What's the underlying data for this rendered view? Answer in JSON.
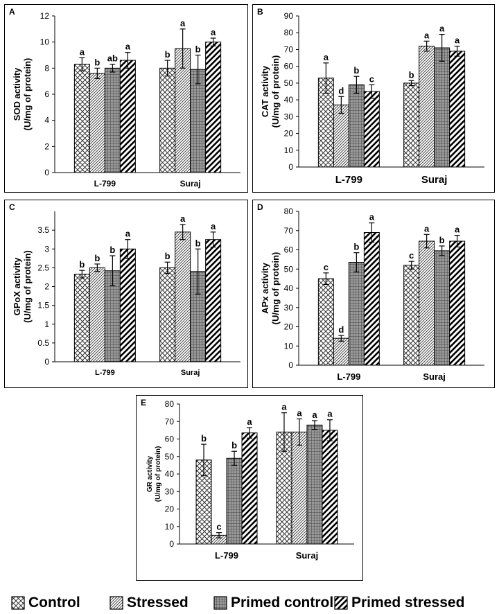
{
  "patterns": {
    "control": "crosshatch",
    "stressed": "diagonal-fine",
    "primed_control": "grid",
    "primed_stressed": "diagonal-bold"
  },
  "legend": [
    {
      "key": "control",
      "label": "Control"
    },
    {
      "key": "stressed",
      "label": "Stressed"
    },
    {
      "key": "primed_control",
      "label": "Primed control"
    },
    {
      "key": "primed_stressed",
      "label": "Primed stressed"
    }
  ],
  "chart_data": [
    {
      "panel_label": "A",
      "type": "bar",
      "ylabel": "SOD activity\n(U/mg of protein)",
      "ylim": [
        0,
        12
      ],
      "yticks": [
        0,
        2,
        4,
        6,
        8,
        10,
        12
      ],
      "categories": [
        "L-799",
        "Suraj"
      ],
      "series": [
        {
          "name": "Control",
          "values": [
            8.3,
            8.0
          ],
          "errors": [
            0.5,
            0.6
          ],
          "letters": [
            "a",
            "b"
          ]
        },
        {
          "name": "Stressed",
          "values": [
            7.6,
            9.5
          ],
          "errors": [
            0.4,
            1.5
          ],
          "letters": [
            "b",
            "a"
          ]
        },
        {
          "name": "Primed control",
          "values": [
            8.0,
            7.9
          ],
          "errors": [
            0.3,
            1.1
          ],
          "letters": [
            "ab",
            "b"
          ]
        },
        {
          "name": "Primed stressed",
          "values": [
            8.6,
            10.0
          ],
          "errors": [
            0.6,
            0.3
          ],
          "letters": [
            "a",
            "a"
          ]
        }
      ]
    },
    {
      "panel_label": "B",
      "type": "bar",
      "ylabel": "CAT activity\n(U/mg of protein)",
      "ylim": [
        0,
        90
      ],
      "yticks": [
        0,
        10,
        20,
        30,
        40,
        50,
        60,
        70,
        80,
        90
      ],
      "categories": [
        "L-799",
        "Suraj"
      ],
      "series": [
        {
          "name": "Control",
          "values": [
            53,
            50
          ],
          "errors": [
            9,
            1.5
          ],
          "letters": [
            "a",
            "b"
          ]
        },
        {
          "name": "Stressed",
          "values": [
            37,
            72
          ],
          "errors": [
            5,
            3
          ],
          "letters": [
            "d",
            "a"
          ]
        },
        {
          "name": "Primed control",
          "values": [
            49,
            71
          ],
          "errors": [
            5,
            8
          ],
          "letters": [
            "b",
            "a"
          ]
        },
        {
          "name": "Primed stressed",
          "values": [
            45,
            69
          ],
          "errors": [
            4,
            3
          ],
          "letters": [
            "c",
            "a"
          ]
        }
      ]
    },
    {
      "panel_label": "C",
      "type": "bar",
      "ylabel": "GPoX activity\n(U/mg of protein)",
      "ylim": [
        0,
        4
      ],
      "yticks": [
        "0",
        "0.5",
        "1",
        "1.5",
        "2",
        "2.5",
        "3",
        "3.5"
      ],
      "categories": [
        "L-799",
        "Suraj"
      ],
      "series": [
        {
          "name": "Control",
          "values": [
            2.33,
            2.5
          ],
          "errors": [
            0.1,
            0.15
          ],
          "letters": [
            "b",
            "b"
          ]
        },
        {
          "name": "Stressed",
          "values": [
            2.5,
            3.45
          ],
          "errors": [
            0.1,
            0.2
          ],
          "letters": [
            "b",
            "a"
          ]
        },
        {
          "name": "Primed control",
          "values": [
            2.42,
            2.4
          ],
          "errors": [
            0.4,
            0.6
          ],
          "letters": [
            "b",
            "b"
          ]
        },
        {
          "name": "Primed stressed",
          "values": [
            3.0,
            3.25
          ],
          "errors": [
            0.25,
            0.2
          ],
          "letters": [
            "a",
            "a"
          ]
        }
      ]
    },
    {
      "panel_label": "D",
      "type": "bar",
      "ylabel": "APx activity\n(U/mg of protein)",
      "ylim": [
        0,
        80
      ],
      "yticks": [
        0,
        10,
        20,
        30,
        40,
        50,
        60,
        70,
        80
      ],
      "categories": [
        "L-799",
        "Suraj"
      ],
      "series": [
        {
          "name": "Control",
          "values": [
            45,
            52
          ],
          "errors": [
            3,
            2
          ],
          "letters": [
            "c",
            "c"
          ]
        },
        {
          "name": "Stressed",
          "values": [
            14,
            64.5
          ],
          "errors": [
            1.5,
            3.5
          ],
          "letters": [
            "d",
            "a"
          ]
        },
        {
          "name": "Primed control",
          "values": [
            53.5,
            59.5
          ],
          "errors": [
            5,
            2.5
          ],
          "letters": [
            "b",
            "b"
          ]
        },
        {
          "name": "Primed stressed",
          "values": [
            69,
            64.5
          ],
          "errors": [
            5,
            3
          ],
          "letters": [
            "a",
            "a"
          ]
        }
      ]
    },
    {
      "panel_label": "E",
      "type": "bar",
      "ylabel": "GR activity\n(U/mg of protein)",
      "ylim": [
        0,
        80
      ],
      "yticks": [
        0,
        10,
        20,
        30,
        40,
        50,
        60,
        70,
        80
      ],
      "categories": [
        "L-799",
        "Suraj"
      ],
      "series": [
        {
          "name": "Control",
          "values": [
            48,
            64
          ],
          "errors": [
            9,
            11
          ],
          "letters": [
            "b",
            "a"
          ]
        },
        {
          "name": "Stressed",
          "values": [
            5,
            64
          ],
          "errors": [
            1.5,
            7.5
          ],
          "letters": [
            "c",
            "a"
          ]
        },
        {
          "name": "Primed control",
          "values": [
            49,
            68
          ],
          "errors": [
            4,
            2.5
          ],
          "letters": [
            "b",
            "a"
          ]
        },
        {
          "name": "Primed stressed",
          "values": [
            63.5,
            65
          ],
          "errors": [
            3,
            6
          ],
          "letters": [
            "a",
            "a"
          ]
        }
      ]
    }
  ]
}
